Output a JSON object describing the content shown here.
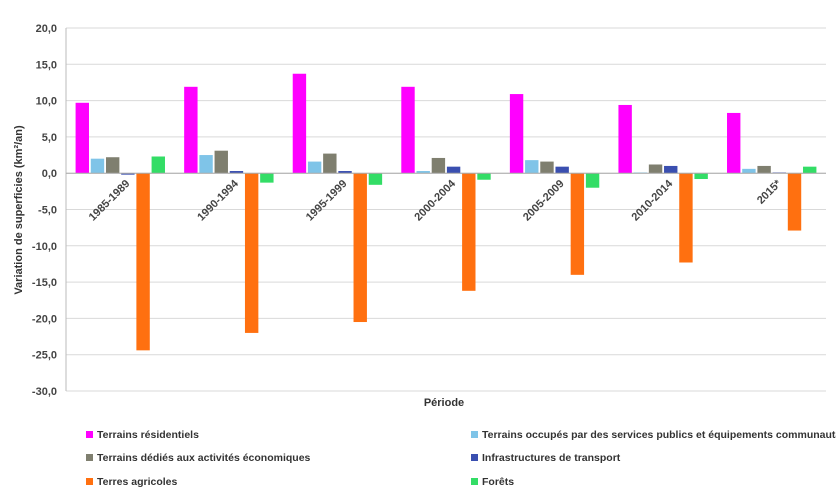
{
  "chart_data": {
    "type": "bar",
    "xlabel": "Période",
    "ylabel": "Variation de superficies (km²/an)",
    "ylim": [
      -30,
      20
    ],
    "yticks": [
      20,
      15,
      10,
      5,
      0,
      -5,
      -10,
      -15,
      -20,
      -25,
      -30
    ],
    "ytick_labels": [
      "20,0",
      "15,0",
      "10,0",
      "5,0",
      "0,0",
      "-5,0",
      "-10,0",
      "-15,0",
      "-20,0",
      "-25,0",
      "-30,0"
    ],
    "grid": "horizontal",
    "legend_position": "bottom",
    "categories": [
      "1985-1989",
      "1990-1994",
      "1995-1999",
      "2000-2004",
      "2005-2009",
      "2010-2014",
      "2015*"
    ],
    "series": [
      {
        "name": "Terrains résidentiels",
        "color": "#ff00ff",
        "values": [
          9.7,
          11.9,
          13.7,
          11.9,
          10.9,
          9.4,
          8.3
        ]
      },
      {
        "name": "Terrains occupés par des services publics et équipements communautaires",
        "color": "#7fc4e8",
        "values": [
          2.0,
          2.5,
          1.6,
          0.3,
          1.8,
          0.1,
          0.6
        ]
      },
      {
        "name": "Terrains dédiés aux activités économiques",
        "color": "#7f7f6f",
        "values": [
          2.2,
          3.1,
          2.7,
          2.1,
          1.6,
          1.2,
          1.0
        ]
      },
      {
        "name": "Infrastructures de transport",
        "color": "#3a4fb0",
        "values": [
          -0.2,
          0.3,
          0.3,
          0.9,
          0.9,
          1.0,
          0.1
        ]
      },
      {
        "name": "Terres agricoles",
        "color": "#ff7010",
        "values": [
          -24.4,
          -22.0,
          -20.5,
          -16.2,
          -14.0,
          -12.3,
          -7.9
        ]
      },
      {
        "name": "Forêts",
        "color": "#33dd66",
        "values": [
          2.3,
          -1.3,
          -1.6,
          -0.9,
          -2.0,
          -0.8,
          0.9
        ]
      }
    ]
  }
}
